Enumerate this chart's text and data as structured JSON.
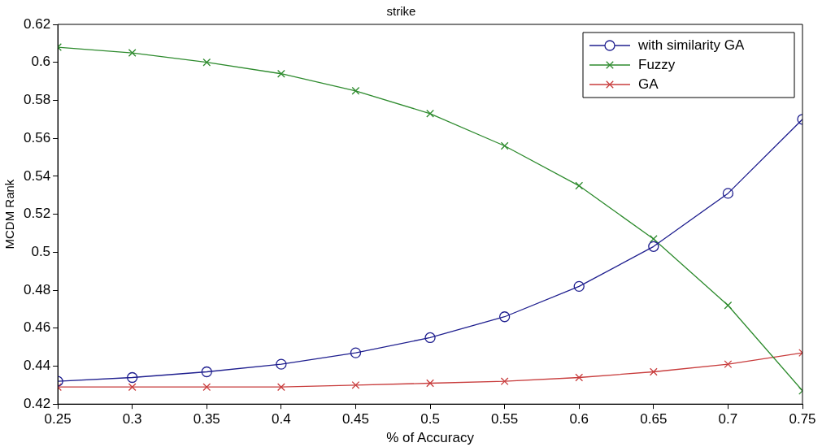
{
  "chart_data": {
    "type": "line",
    "title": "strike",
    "xlabel": "% of Accuracy",
    "ylabel": "MCDM Rank",
    "x": [
      0.25,
      0.3,
      0.35,
      0.4,
      0.45,
      0.5,
      0.55,
      0.6,
      0.65,
      0.7,
      0.75
    ],
    "series": [
      {
        "name": "with similarity GA",
        "color": "#1f1f8f",
        "marker": "circle",
        "values": [
          0.432,
          0.434,
          0.437,
          0.441,
          0.447,
          0.455,
          0.466,
          0.482,
          0.503,
          0.531,
          0.57
        ]
      },
      {
        "name": "Fuzzy",
        "color": "#2e8b2e",
        "marker": "cross",
        "values": [
          0.608,
          0.605,
          0.6,
          0.594,
          0.585,
          0.573,
          0.556,
          0.535,
          0.507,
          0.472,
          0.427
        ]
      },
      {
        "name": "GA",
        "color": "#c83c3c",
        "marker": "cross",
        "values": [
          0.429,
          0.429,
          0.429,
          0.429,
          0.43,
          0.431,
          0.432,
          0.434,
          0.437,
          0.441,
          0.447
        ]
      }
    ],
    "xlim": [
      0.25,
      0.75
    ],
    "xticks": [
      0.25,
      0.3,
      0.35,
      0.4,
      0.45,
      0.5,
      0.55,
      0.6,
      0.65,
      0.7,
      0.75
    ],
    "ylim": [
      0.42,
      0.62
    ],
    "yticks": [
      0.42,
      0.44,
      0.46,
      0.48,
      0.5,
      0.52,
      0.54,
      0.56,
      0.58,
      0.6,
      0.62
    ],
    "grid": false,
    "legend": "top right",
    "line_style": "solid"
  }
}
